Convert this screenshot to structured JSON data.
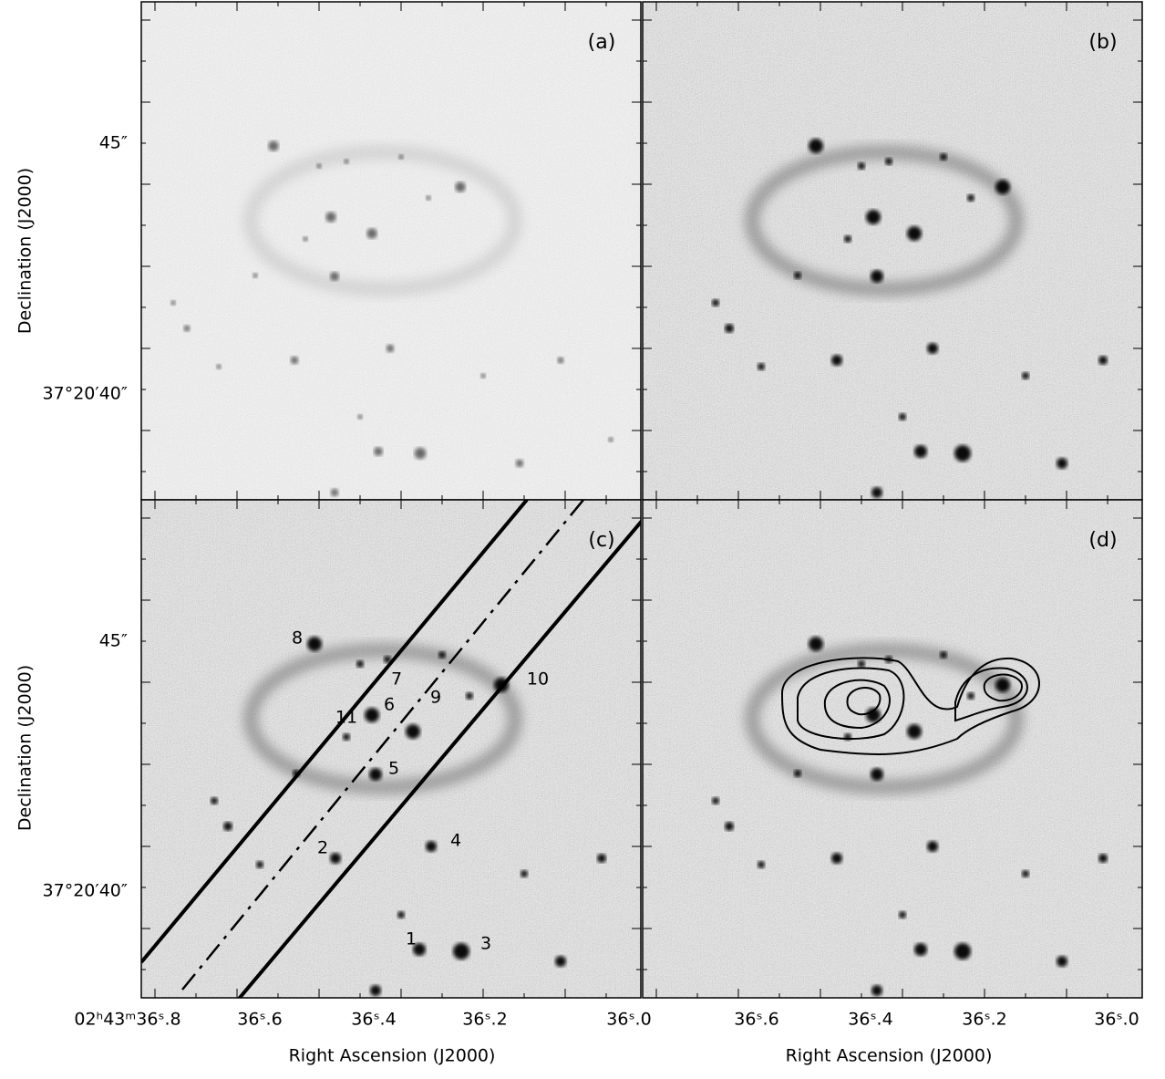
{
  "panels": [
    {
      "label": "(a)"
    },
    {
      "label": "(b)"
    },
    {
      "label": "(c)",
      "markers": [
        "1",
        "2",
        "3",
        "4",
        "5",
        "6",
        "7",
        "8",
        "9",
        "10",
        "11"
      ]
    },
    {
      "label": "(d)"
    }
  ],
  "y_axis": {
    "title": "Declination (J2000)",
    "ticks": [
      "45″",
      "37°20′40″"
    ]
  },
  "x_axis": {
    "title": "Right Ascension (J2000)",
    "left_ticks": [
      "02ʰ43ᵐ36ˢ.8",
      "36ˢ.6",
      "36ˢ.4",
      "36ˢ.2",
      "36ˢ.0"
    ],
    "right_ticks": [
      "36ˢ.6",
      "36ˢ.4",
      "36ˢ.2",
      "36ˢ.0"
    ]
  }
}
